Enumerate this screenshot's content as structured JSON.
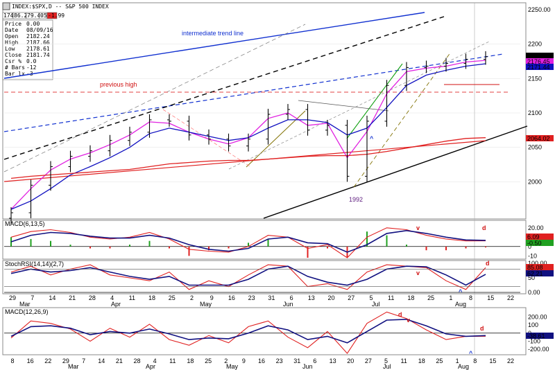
{
  "header": {
    "title": "INDEX:$SPX,D -- S&P 500 INDEX",
    "mini_cells": [
      "174",
      "86.28",
      "79.42",
      "05",
      "-1.99"
    ],
    "info_labels": [
      "Price",
      "Date",
      "Open",
      "High",
      "Low",
      "Close",
      "Csr %",
      "# Bars",
      "Bar lx"
    ],
    "info_values": [
      "0.00",
      "08/09/16",
      "2182.24",
      "2187.66",
      "2178.61",
      "2181.74",
      "0.0",
      "-12",
      "-3"
    ]
  },
  "colors": {
    "price": "#000000",
    "ma_short": "#e020e0",
    "ma_mid": "#1010c0",
    "ma_long": "#e02020",
    "trend": "#1030d0",
    "macd_fast": "#e02020",
    "macd_slow": "#101080",
    "histogram": "#20a020",
    "neutral": "#808080"
  },
  "price_panel": {
    "y_ticks": [
      "2250.00",
      "2200",
      "2150",
      "2100",
      "2050",
      "2000"
    ],
    "badges": [
      "2184.05",
      "2176.45",
      "2171.44",
      "2064.02"
    ],
    "annotations": {
      "intermediate": "intermediate trend line",
      "previous_high": "previous high",
      "low_label": "1992",
      "caret": "^"
    }
  },
  "macd_panel": {
    "title": "MACD(6,13,5)",
    "y_ticks": [
      "20.00",
      "10",
      "0",
      "-10"
    ],
    "badges": [
      "6.09",
      "-0.50"
    ],
    "marker": "d"
  },
  "stoch_panel": {
    "title": "StochRSI(14,14)(2,7)",
    "y_ticks": [
      "100.00",
      "50",
      "0.00"
    ],
    "badges": [
      "85.08",
      "62.21"
    ],
    "markers": {
      "v1": "v",
      "d1": "d",
      "caret": "^"
    }
  },
  "x_axis_mid": {
    "days": [
      "29",
      "7",
      "14",
      "21",
      "28",
      "4",
      "11",
      "18",
      "25",
      "2",
      "9",
      "16",
      "23",
      "31",
      "6",
      "13",
      "20",
      "27",
      "5",
      "11",
      "18",
      "25",
      "1",
      "8",
      "15",
      "22"
    ],
    "months": [
      "Mar",
      "Apr",
      "May",
      "Jun",
      "Jul",
      "Aug"
    ]
  },
  "macd2_panel": {
    "title": "MACD(12,26,9)",
    "y_ticks": [
      "200.00",
      "100",
      "0",
      "-100",
      "-200.00"
    ],
    "badge": "-38.61",
    "markers": {
      "d1": "d",
      "v1": "v",
      "d2": "d",
      "caret": "^"
    }
  },
  "x_axis_bottom": {
    "days": [
      "8",
      "16",
      "22",
      "29",
      "7",
      "14",
      "21",
      "28",
      "4",
      "11",
      "18",
      "25",
      "2",
      "9",
      "16",
      "23",
      "31",
      "6",
      "13",
      "20",
      "27",
      "5",
      "11",
      "18",
      "25",
      "1",
      "8",
      "15",
      "22"
    ],
    "months": [
      "Mar",
      "Apr",
      "May",
      "Jun",
      "Jul",
      "Aug"
    ]
  },
  "chart_data": [
    {
      "type": "line",
      "title": "INDEX:$SPX,D -- S&P 500 INDEX",
      "x": [
        "Feb 29",
        "Mar 7",
        "Mar 14",
        "Mar 21",
        "Mar 28",
        "Apr 4",
        "Apr 11",
        "Apr 18",
        "Apr 25",
        "May 2",
        "May 9",
        "May 16",
        "May 23",
        "May 31",
        "Jun 6",
        "Jun 13",
        "Jun 20",
        "Jun 27",
        "Jul 5",
        "Jul 11",
        "Jul 18",
        "Jul 25",
        "Aug 1",
        "Aug 8",
        "Aug 9"
      ],
      "series": [
        {
          "values": [
            1955,
            1995,
            2022,
            2037,
            2045,
            2060,
            2072,
            2090,
            2088,
            2068,
            2062,
            2052,
            2062,
            2098,
            2105,
            2075,
            2082,
            2008,
            2088,
            2140,
            2166,
            2168,
            2172,
            2178,
            2181.74
          ]
        },
        {
          "values": [
            1960,
            1990,
            2017,
            2033,
            2042,
            2054,
            2068,
            2087,
            2085,
            2072,
            2062,
            2055,
            2064,
            2092,
            2100,
            2082,
            2085,
            2035,
            2073,
            2128,
            2160,
            2165,
            2168,
            2174,
            2176.45
          ]
        },
        {
          "values": [
            1960,
            1972,
            1990,
            2010,
            2022,
            2035,
            2050,
            2070,
            2078,
            2072,
            2066,
            2060,
            2064,
            2078,
            2090,
            2090,
            2086,
            2068,
            2078,
            2108,
            2140,
            2155,
            2162,
            2168,
            2171.44
          ]
        },
        {
          "values": [
            2005,
            2008,
            2010,
            2012,
            2014,
            2016,
            2018,
            2022,
            2026,
            2028,
            2030,
            2031,
            2031,
            2033,
            2035,
            2037,
            2038,
            2038,
            2040,
            2044,
            2049,
            2054,
            2059,
            2063,
            2064.02
          ]
        }
      ],
      "ylim": [
        1950,
        2250
      ]
    },
    {
      "type": "line",
      "title": "MACD(6,13,5)",
      "series": [
        {
          "values": [
            10,
            16,
            18,
            15,
            10,
            8,
            10,
            15,
            8,
            -3,
            -5,
            -6,
            0,
            12,
            10,
            -2,
            2,
            -12,
            10,
            20,
            18,
            12,
            8,
            6,
            6.09
          ]
        },
        {
          "values": [
            5,
            12,
            15,
            14,
            11,
            9,
            9,
            12,
            9,
            2,
            -3,
            -5,
            -2,
            8,
            10,
            4,
            3,
            -6,
            2,
            14,
            17,
            14,
            10,
            7,
            6.59
          ]
        }
      ],
      "ylim": [
        -12,
        25
      ]
    },
    {
      "type": "line",
      "title": "StochRSI(14,14)(2,7)",
      "series": [
        {
          "values": [
            70,
            90,
            60,
            80,
            95,
            60,
            50,
            40,
            70,
            10,
            40,
            20,
            60,
            95,
            90,
            20,
            30,
            10,
            70,
            95,
            90,
            85,
            40,
            10,
            85.08
          ]
        },
        {
          "values": [
            65,
            80,
            70,
            75,
            85,
            70,
            55,
            45,
            55,
            25,
            25,
            25,
            45,
            80,
            90,
            55,
            35,
            25,
            45,
            80,
            90,
            88,
            60,
            25,
            62.21
          ]
        }
      ],
      "ylim": [
        0,
        100
      ]
    },
    {
      "type": "line",
      "title": "MACD(12,26,9)",
      "series": [
        {
          "values": [
            -60,
            150,
            120,
            50,
            -100,
            60,
            -50,
            110,
            -80,
            -150,
            -30,
            -120,
            80,
            150,
            -50,
            -180,
            20,
            -250,
            120,
            260,
            180,
            40,
            -80,
            -40,
            -38.61
          ]
        },
        {
          "values": [
            -40,
            80,
            90,
            60,
            -20,
            20,
            0,
            50,
            -10,
            -80,
            -60,
            -70,
            0,
            90,
            40,
            -80,
            -40,
            -120,
            20,
            160,
            170,
            90,
            -10,
            -40,
            -30
          ]
        }
      ],
      "ylim": [
        -250,
        280
      ]
    }
  ]
}
